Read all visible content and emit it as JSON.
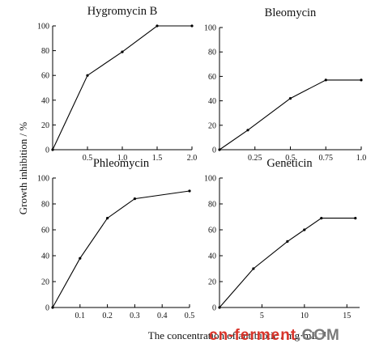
{
  "figure": {
    "ylabel": "Growth inhibition / %",
    "xlabel": "The concentration of antibiotic / mg·mL⁻¹",
    "watermark": {
      "part1": "cn-ferment",
      "part2": ".COM",
      "color1": "#d9352b",
      "color2": "#7a7a7a"
    }
  },
  "chart_data": [
    {
      "type": "line",
      "title": "Hygromycin B",
      "x": [
        0,
        0.5,
        1.0,
        1.5,
        2.0
      ],
      "y": [
        0,
        60,
        79,
        100,
        100
      ],
      "xlim": [
        0,
        2.0
      ],
      "ylim": [
        0,
        100
      ],
      "xticks": [
        "0.5",
        "1.0",
        "1.5",
        "2.0"
      ],
      "yticks": [
        "0",
        "20",
        "40",
        "60",
        "80",
        "100"
      ],
      "grid": false
    },
    {
      "type": "line",
      "title": "Bleomycin",
      "x": [
        0,
        0.2,
        0.5,
        0.75,
        1.0
      ],
      "y": [
        0,
        16,
        42,
        57,
        57
      ],
      "xlim": [
        0,
        1.0
      ],
      "ylim": [
        0,
        100
      ],
      "xticks": [
        "0.25",
        "0.5",
        "0.75",
        "1.0"
      ],
      "yticks": [
        "0",
        "20",
        "40",
        "60",
        "80",
        "100"
      ],
      "grid": false
    },
    {
      "type": "line",
      "title": "Phleomycin",
      "x": [
        0,
        0.1,
        0.2,
        0.3,
        0.5
      ],
      "y": [
        0,
        38,
        69,
        84,
        90
      ],
      "xlim": [
        0,
        0.5
      ],
      "ylim": [
        0,
        100
      ],
      "xticks": [
        "0.1",
        "0.2",
        "0.3",
        "0.4",
        "0.5"
      ],
      "yticks": [
        "0",
        "20",
        "40",
        "60",
        "80",
        "100"
      ],
      "grid": false
    },
    {
      "type": "line",
      "title": "Geneticin",
      "x": [
        0,
        4,
        8,
        10,
        12,
        16
      ],
      "y": [
        0,
        30,
        51,
        60,
        69,
        69
      ],
      "xlim": [
        0,
        16.5
      ],
      "ylim": [
        0,
        100
      ],
      "xticks": [
        "5",
        "10",
        "15"
      ],
      "yticks": [
        "0",
        "20",
        "40",
        "60",
        "80",
        "100"
      ],
      "grid": false
    }
  ]
}
